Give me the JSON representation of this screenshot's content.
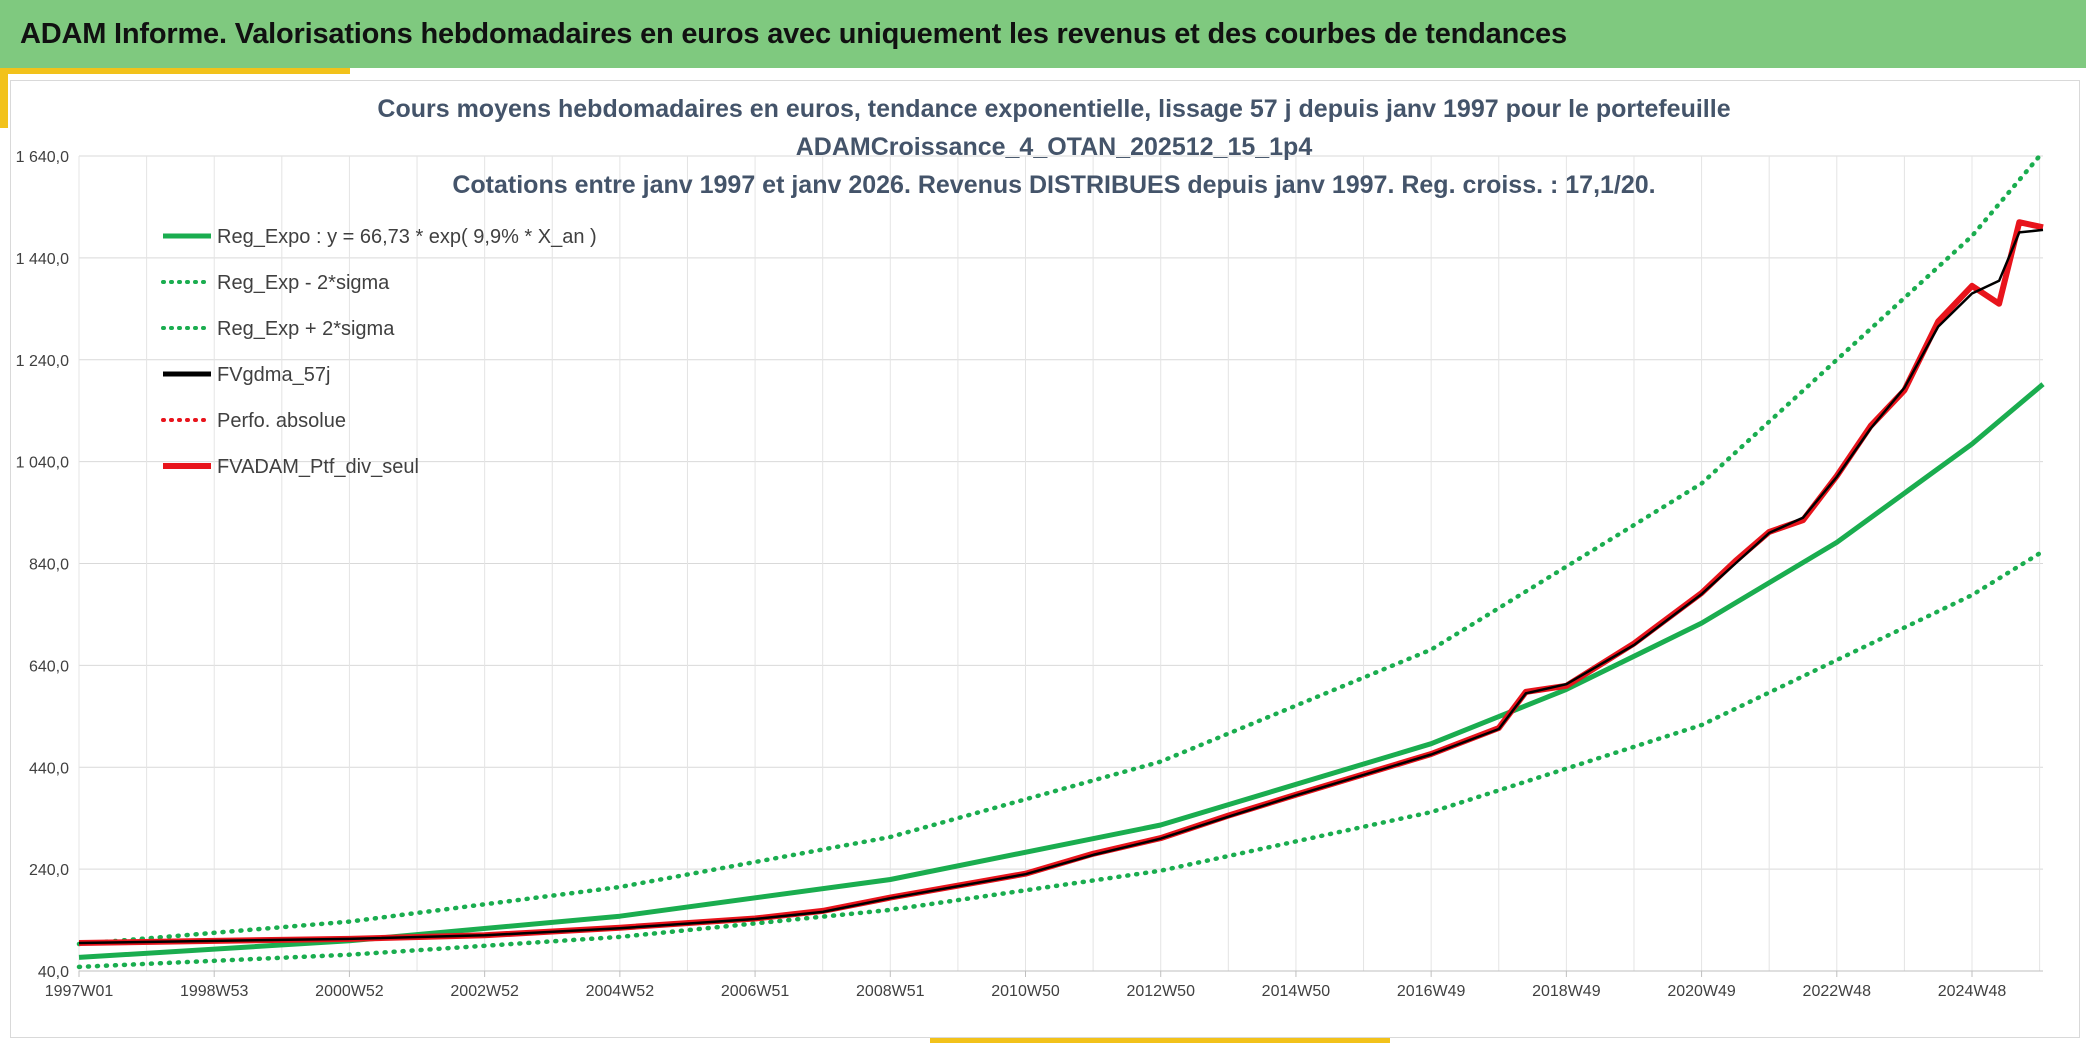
{
  "banner": {
    "title": "ADAM Informe. Valorisations hebdomadaires en euros avec uniquement les revenus et des courbes de tendances"
  },
  "colors": {
    "banner_bg": "#7fc97f",
    "accent": "#f2c21b",
    "reg_green": "#1aad4f",
    "series_red": "#e8141c",
    "series_black": "#000000",
    "title_text": "#44546a"
  },
  "chart_data": {
    "type": "line",
    "title_lines": [
      "Cours moyens hebdomadaires en euros, tendance exponentielle, lissage 57 j depuis janv 1997 pour le portefeuille",
      "ADAMCroissance_4_OTAN_202512_15_1p4",
      "Cotations entre janv 1997 et janv 2026. Revenus DISTRIBUES depuis janv 1997. Reg. croiss. : 17,1/20."
    ],
    "x_range_years": [
      1997.0,
      2026.05
    ],
    "x_ticks": [
      {
        "label": "1997W01",
        "year": 1997.0
      },
      {
        "label": "1998W53",
        "year": 1999.0
      },
      {
        "label": "2000W52",
        "year": 2001.0
      },
      {
        "label": "2002W52",
        "year": 2003.0
      },
      {
        "label": "2004W52",
        "year": 2005.0
      },
      {
        "label": "2006W51",
        "year": 2007.0
      },
      {
        "label": "2008W51",
        "year": 2009.0
      },
      {
        "label": "2010W50",
        "year": 2011.0
      },
      {
        "label": "2012W50",
        "year": 2013.0
      },
      {
        "label": "2014W50",
        "year": 2015.0
      },
      {
        "label": "2016W49",
        "year": 2017.0
      },
      {
        "label": "2018W49",
        "year": 2019.0
      },
      {
        "label": "2020W49",
        "year": 2021.0
      },
      {
        "label": "2022W48",
        "year": 2023.0
      },
      {
        "label": "2024W48",
        "year": 2025.0
      }
    ],
    "ylim": [
      40,
      1640
    ],
    "y_ticks": [
      {
        "label": "40,0",
        "value": 40
      },
      {
        "label": "240,0",
        "value": 240
      },
      {
        "label": "440,0",
        "value": 440
      },
      {
        "label": "640,0",
        "value": 640
      },
      {
        "label": "840,0",
        "value": 840
      },
      {
        "label": "1 040,0",
        "value": 1040
      },
      {
        "label": "1 240,0",
        "value": 1240
      },
      {
        "label": "1 440,0",
        "value": 1440
      },
      {
        "label": "1 640,0",
        "value": 1640
      }
    ],
    "legend": [
      {
        "label": "Reg_Expo : y = 66,73 * exp( 9,9% *  X_an )",
        "style": "solid-green"
      },
      {
        "label": "Reg_Exp - 2*sigma",
        "style": "dotted-green"
      },
      {
        "label": "Reg_Exp + 2*sigma",
        "style": "dotted-green"
      },
      {
        "label": "FVgdma_57j",
        "style": "solid-black"
      },
      {
        "label": "Perfo. absolue",
        "style": "dotted-red"
      },
      {
        "label": "FVADAM_Ptf_div_seul",
        "style": "solid-red"
      }
    ],
    "series": [
      {
        "name": "Reg_Expo",
        "x": [
          1997.0,
          2001.0,
          2005.0,
          2009.0,
          2013.0,
          2017.0,
          2019.0,
          2021.0,
          2023.0,
          2025.0,
          2026.05
        ],
        "y": [
          66.7,
          99.2,
          147.6,
          219.6,
          326.7,
          486.2,
          592.8,
          722.9,
          881.4,
          1074.6,
          1192
        ]
      },
      {
        "name": "Reg_Exp - 2*sigma",
        "x": [
          1997.0,
          2001.0,
          2005.0,
          2009.0,
          2013.0,
          2017.0,
          2021.0,
          2025.0,
          2026.05
        ],
        "y": [
          48,
          72,
          107,
          160,
          237,
          352,
          523,
          778,
          864
        ]
      },
      {
        "name": "Reg_Exp + 2*sigma",
        "x": [
          1997.0,
          2001.0,
          2005.0,
          2009.0,
          2013.0,
          2017.0,
          2021.0,
          2025.0,
          2026.05
        ],
        "y": [
          93,
          137,
          205,
          303,
          451,
          671,
          997,
          1483,
          1648
        ]
      },
      {
        "name": "FVgdma_57j",
        "x": [
          1997.0,
          1999.0,
          2001.0,
          2003.0,
          2005.0,
          2007.0,
          2008.0,
          2009.0,
          2011.0,
          2012.0,
          2013.0,
          2014.0,
          2015.0,
          2016.0,
          2017.0,
          2018.0,
          2018.4,
          2019.0,
          2020.0,
          2021.0,
          2021.5,
          2022.0,
          2022.5,
          2023.0,
          2023.5,
          2024.0,
          2024.5,
          2025.0,
          2025.4,
          2025.7,
          2026.05
        ],
        "y": [
          95,
          99,
          103,
          110,
          124,
          142,
          156,
          183,
          230,
          268,
          300,
          343,
          385,
          425,
          465,
          515,
          585,
          603,
          680,
          780,
          840,
          900,
          930,
          1010,
          1105,
          1185,
          1305,
          1370,
          1395,
          1490,
          1495
        ]
      },
      {
        "name": "FVADAM_Ptf_div_seul",
        "x": [
          1997.0,
          1999.0,
          2001.0,
          2003.0,
          2005.0,
          2007.0,
          2008.0,
          2009.0,
          2011.0,
          2012.0,
          2013.0,
          2014.0,
          2015.0,
          2016.0,
          2017.0,
          2018.0,
          2018.4,
          2019.0,
          2020.0,
          2021.0,
          2021.5,
          2022.0,
          2022.5,
          2023.0,
          2023.5,
          2024.0,
          2024.5,
          2025.0,
          2025.4,
          2025.7,
          2026.05
        ],
        "y": [
          95,
          99,
          103,
          110,
          125,
          143,
          158,
          184,
          231,
          270,
          301,
          345,
          386,
          426,
          466,
          517,
          588,
          600,
          683,
          782,
          845,
          902,
          925,
          1012,
          1110,
          1180,
          1315,
          1385,
          1350,
          1510,
          1500
        ]
      }
    ]
  }
}
